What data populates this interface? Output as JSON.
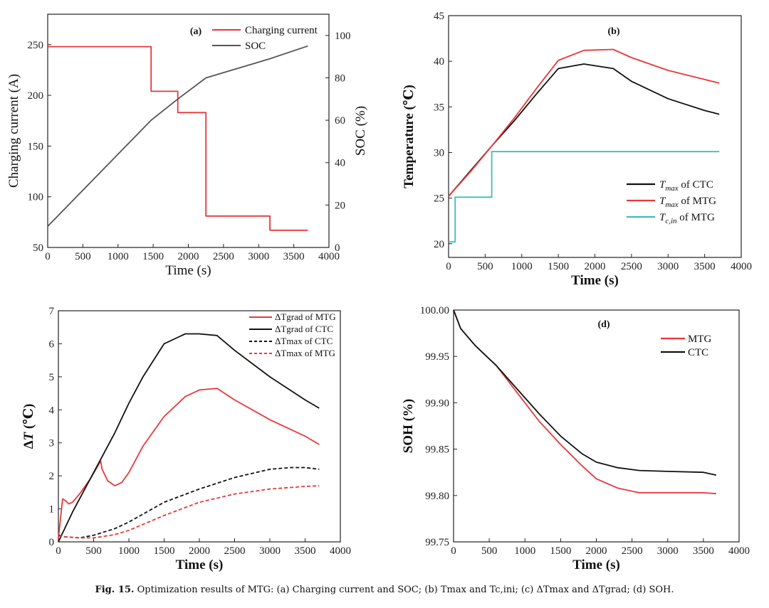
{
  "figure": {
    "caption_label": "Fig. 15.",
    "caption_text": "Optimization results of MTG: (a) Charging current and SOC; (b) Tmax and Tc,ini; (c) ΔTmax and ΔTgrad; (d) SOH."
  },
  "colors": {
    "red": "#e8373a",
    "black": "#111111",
    "gray": "#555555",
    "teal": "#3fbcbc"
  },
  "chart_data": [
    {
      "id": "a",
      "type": "line",
      "panel_label": "(a)",
      "xlabel": "Time (s)",
      "ylabel_left": "Charging current (A)",
      "ylabel_right": "SOC (%)",
      "xlim": [
        0,
        4000
      ],
      "ylim_left": [
        50,
        280
      ],
      "ylim_right": [
        0,
        110
      ],
      "xticks": [
        0,
        500,
        1000,
        1500,
        2000,
        2500,
        3000,
        3500,
        4000
      ],
      "yticks_left": [
        50,
        100,
        150,
        200,
        250
      ],
      "yticks_right": [
        0,
        20,
        40,
        60,
        80,
        100
      ],
      "legend_position": "top-right",
      "series": [
        {
          "name": "Charging current",
          "axis": "left",
          "color": "red",
          "x": [
            0,
            1470,
            1470,
            1850,
            1850,
            2250,
            2250,
            3160,
            3160,
            3700
          ],
          "y": [
            248,
            248,
            204,
            204,
            183,
            183,
            81,
            81,
            67,
            67
          ]
        },
        {
          "name": "SOC",
          "axis": "right",
          "color": "gray",
          "x": [
            0,
            1470,
            1850,
            2250,
            3160,
            3700
          ],
          "y": [
            10,
            60,
            70,
            80,
            89,
            95
          ]
        }
      ]
    },
    {
      "id": "b",
      "type": "line",
      "panel_label": "(b)",
      "xlabel": "Time (s)",
      "ylabel": "Temperature (℃)",
      "xlim": [
        0,
        4000
      ],
      "ylim": [
        18.5,
        45
      ],
      "xticks": [
        0,
        500,
        1000,
        1500,
        2000,
        2500,
        3000,
        3500,
        4000
      ],
      "yticks": [
        20,
        25,
        30,
        35,
        40,
        45
      ],
      "legend_position": "bottom-right",
      "series": [
        {
          "name": "Tmax of CTC",
          "sym": "T",
          "sub": "max",
          "suffix": " of CTC",
          "color": "black",
          "x": [
            0,
            300,
            600,
            900,
            1200,
            1500,
            1850,
            2250,
            2500,
            3000,
            3500,
            3700
          ],
          "y": [
            25.2,
            28.0,
            30.8,
            33.5,
            36.4,
            39.2,
            39.7,
            39.2,
            37.8,
            35.9,
            34.6,
            34.2
          ]
        },
        {
          "name": "Tmax of MTG",
          "sym": "T",
          "sub": "max",
          "suffix": " of MTG",
          "color": "red",
          "x": [
            0,
            300,
            600,
            900,
            1200,
            1500,
            1850,
            2250,
            2500,
            3000,
            3500,
            3700
          ],
          "y": [
            25.2,
            27.9,
            30.8,
            33.8,
            37.0,
            40.1,
            41.2,
            41.3,
            40.4,
            39.0,
            38.0,
            37.6
          ]
        },
        {
          "name": "Tc,in of MTG",
          "sym": "T",
          "sub": "c,in",
          "suffix": " of MTG",
          "color": "teal",
          "x": [
            0,
            90,
            90,
            590,
            590,
            3700
          ],
          "y": [
            20.2,
            20.2,
            25.1,
            25.1,
            30.1,
            30.1
          ]
        }
      ]
    },
    {
      "id": "c",
      "type": "line",
      "panel_label": "",
      "xlabel": "Time (s)",
      "ylabel": "ΔT (℃)",
      "xlim": [
        0,
        4000
      ],
      "ylim": [
        0,
        7
      ],
      "xticks": [
        0,
        500,
        1000,
        1500,
        2000,
        2500,
        3000,
        3500,
        4000
      ],
      "yticks": [
        0,
        1,
        2,
        3,
        4,
        5,
        6,
        7
      ],
      "legend_position": "top-right",
      "series": [
        {
          "name": "ΔTgrad of MTG",
          "color": "red",
          "dash": false,
          "x": [
            0,
            60,
            100,
            150,
            200,
            300,
            450,
            600,
            620,
            700,
            800,
            900,
            1000,
            1200,
            1500,
            1800,
            2000,
            2250,
            2500,
            3000,
            3500,
            3700
          ],
          "y": [
            0.1,
            1.3,
            1.25,
            1.15,
            1.2,
            1.45,
            1.9,
            2.45,
            2.2,
            1.85,
            1.7,
            1.8,
            2.1,
            2.9,
            3.8,
            4.4,
            4.6,
            4.65,
            4.3,
            3.7,
            3.2,
            2.95
          ]
        },
        {
          "name": "ΔTgrad of CTC",
          "color": "black",
          "dash": false,
          "x": [
            0,
            200,
            400,
            600,
            800,
            1000,
            1200,
            1500,
            1800,
            2000,
            2250,
            2500,
            3000,
            3500,
            3700
          ],
          "y": [
            0,
            0.9,
            1.7,
            2.5,
            3.3,
            4.2,
            5.0,
            6.0,
            6.3,
            6.3,
            6.25,
            5.8,
            5.0,
            4.3,
            4.05
          ]
        },
        {
          "name": "ΔTmax of CTC",
          "color": "black",
          "dash": true,
          "x": [
            0,
            100,
            300,
            500,
            800,
            1000,
            1500,
            2000,
            2500,
            3000,
            3300,
            3500,
            3700
          ],
          "y": [
            0.2,
            0.15,
            0.12,
            0.2,
            0.4,
            0.6,
            1.2,
            1.6,
            1.95,
            2.2,
            2.25,
            2.25,
            2.2
          ]
        },
        {
          "name": "ΔTmax of MTG",
          "color": "red",
          "dash": true,
          "x": [
            0,
            100,
            300,
            500,
            800,
            1000,
            1500,
            2000,
            2500,
            3000,
            3500,
            3700
          ],
          "y": [
            0.18,
            0.15,
            0.12,
            0.12,
            0.22,
            0.35,
            0.8,
            1.2,
            1.45,
            1.6,
            1.68,
            1.7
          ]
        }
      ]
    },
    {
      "id": "d",
      "type": "line",
      "panel_label": "(d)",
      "xlabel": "Time (s)",
      "ylabel": "SOH (%)",
      "xlim": [
        0,
        4000
      ],
      "ylim": [
        99.75,
        100.0
      ],
      "xticks": [
        0,
        500,
        1000,
        1500,
        2000,
        2500,
        3000,
        3500,
        4000
      ],
      "yticks": [
        99.75,
        99.8,
        99.85,
        99.9,
        99.95,
        100.0
      ],
      "ytick_labels": [
        "99.75",
        "99.80",
        "99.85",
        "99.90",
        "99.95",
        "100.00"
      ],
      "legend_position": "top-right",
      "series": [
        {
          "name": "MTG",
          "color": "red",
          "x": [
            0,
            100,
            300,
            600,
            900,
            1200,
            1500,
            1800,
            2000,
            2300,
            2600,
            3000,
            3500,
            3680
          ],
          "y": [
            100.0,
            99.98,
            99.962,
            99.94,
            99.91,
            99.88,
            99.855,
            99.832,
            99.818,
            99.808,
            99.803,
            99.803,
            99.803,
            99.802
          ]
        },
        {
          "name": "CTC",
          "color": "black",
          "x": [
            0,
            100,
            300,
            600,
            900,
            1200,
            1500,
            1800,
            2000,
            2300,
            2600,
            3000,
            3500,
            3680
          ],
          "y": [
            100.0,
            99.98,
            99.962,
            99.94,
            99.914,
            99.888,
            99.864,
            99.845,
            99.836,
            99.83,
            99.827,
            99.826,
            99.825,
            99.822
          ]
        }
      ]
    }
  ]
}
